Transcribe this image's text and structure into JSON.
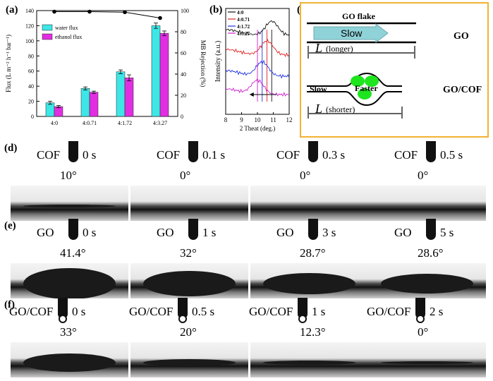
{
  "panel_letters": {
    "a": "(a)",
    "b": "(b)",
    "c": "(c)",
    "d": "(d)",
    "e": "(e)",
    "f": "(f)"
  },
  "chart_data": [
    {
      "type": "bar",
      "panel": "(a)",
      "categories": [
        "4:0",
        "4:0.71",
        "4:1.72",
        "4:3.27"
      ],
      "series": [
        {
          "name": "water flux",
          "color": "#3ee6e6",
          "values": [
            18,
            37,
            59,
            120
          ],
          "errors": [
            2,
            2,
            2.5,
            3.5
          ]
        },
        {
          "name": "ethanol flux",
          "color": "#e12ee1",
          "values": [
            13,
            32,
            51,
            110
          ],
          "errors": [
            1.5,
            1.5,
            4,
            3
          ]
        }
      ],
      "line": {
        "name": "MB Rejection (%)",
        "values": [
          99,
          99,
          98.5,
          93
        ],
        "axis": "right"
      },
      "ylabel": "Flux (L m⁻² h⁻¹ bar⁻¹)",
      "ylabel_right": "MB Rejection (%)",
      "ylim": [
        0,
        140
      ],
      "ylim_right": [
        0,
        100
      ],
      "yticks": [
        "0",
        "20",
        "40",
        "60",
        "80",
        "100",
        "120",
        "140"
      ],
      "yticks_right": [
        "0",
        "20",
        "40",
        "60",
        "80",
        "100"
      ],
      "legend_position": "upper-left"
    },
    {
      "type": "line",
      "panel": "(b)",
      "xlabel": "2 Theat (deg.)",
      "ylabel": "Intensity (a.u.)",
      "xlim": [
        8,
        12
      ],
      "xticks": [
        "8",
        "9",
        "10",
        "11",
        "12"
      ],
      "series": [
        {
          "name": "4:0",
          "color": "#111111",
          "peak": 10.9
        },
        {
          "name": "4:0.71",
          "color": "#e02020",
          "peak": 10.6
        },
        {
          "name": "4:1.72",
          "color": "#2030e0",
          "peak": 10.3
        },
        {
          "name": "4:3.27",
          "color": "#d020d0",
          "peak": 10.0
        }
      ]
    }
  ],
  "diagram_c": {
    "go_flake": "GO flake",
    "slow": "Slow",
    "l_longer_symbol": "L",
    "l_longer_text": "(longer)",
    "go": "GO",
    "slow2": "Slow",
    "faster": "Faster",
    "l_shorter_symbol": "L",
    "l_shorter_text": "(shorter)",
    "go_cof": "GO/COF"
  },
  "rows": [
    {
      "letter": "(d)",
      "label": "COF",
      "cells": [
        {
          "time": "0 s",
          "angle": "10°",
          "contact": 0.02
        },
        {
          "time": "0.1 s",
          "angle": "0°",
          "contact": 0
        },
        {
          "time": "0.3 s",
          "angle": "0°",
          "contact": 0
        },
        {
          "time": "0.5 s",
          "angle": "0°",
          "contact": 0
        }
      ]
    },
    {
      "letter": "(e)",
      "label": "GO",
      "cells": [
        {
          "time": "0 s",
          "angle": "41.4°",
          "contact": 0.5
        },
        {
          "time": "1 s",
          "angle": "32°",
          "contact": 0.4
        },
        {
          "time": "3 s",
          "angle": "28.7°",
          "contact": 0.33
        },
        {
          "time": "5 s",
          "angle": "28.6°",
          "contact": 0.32
        }
      ]
    },
    {
      "letter": "(f)",
      "label": "GO/COF",
      "cells": [
        {
          "time": "0 s",
          "angle": "33°",
          "contact": 0.3
        },
        {
          "time": "0.5 s",
          "angle": "20°",
          "contact": 0.12
        },
        {
          "time": "1 s",
          "angle": "12.3°",
          "contact": 0.07
        },
        {
          "time": "2 s",
          "angle": "0°",
          "contact": 0.02
        }
      ]
    }
  ]
}
